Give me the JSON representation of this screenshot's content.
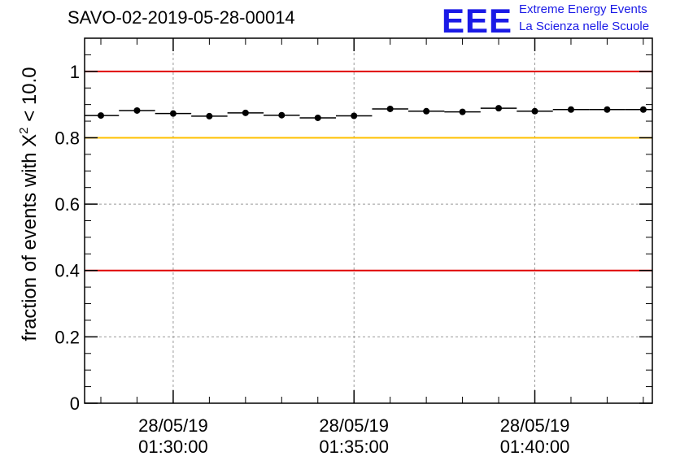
{
  "header": {
    "title": "SAVO-02-2019-05-28-00014",
    "logo_text": "EEE",
    "logo_line1": "Extreme Energy Events",
    "logo_line2": "La Scienza nelle Scuole"
  },
  "colors": {
    "axis": "#000000",
    "grid": "#9a9a9a",
    "red_line": "#e00000",
    "yellow_line": "#ffc000",
    "marker": "#000000",
    "logo": "#1a1ae6"
  },
  "chart_data": {
    "type": "scatter",
    "title": "SAVO-02-2019-05-28-00014",
    "ylabel_prefix": "fraction of events with ",
    "ylabel_symbol": "X",
    "ylabel_superscript": "2",
    "ylabel_suffix": " < 10.0",
    "xlabel": "",
    "ylim": [
      0,
      1.1
    ],
    "y_ticks": [
      0,
      0.2,
      0.4,
      0.6,
      0.8,
      1
    ],
    "y_tick_labels": [
      "0",
      "0.2",
      "0.4",
      "0.6",
      "0.8",
      "1"
    ],
    "x_unit": "minutes since 01:25:00",
    "xlim": [
      2.55,
      18.25
    ],
    "x_ticks": [
      5,
      10,
      15
    ],
    "x_tick_labels_date": [
      "28/05/19",
      "28/05/19",
      "28/05/19"
    ],
    "x_tick_labels_time": [
      "01:30:00",
      "01:35:00",
      "01:40:00"
    ],
    "grid": true,
    "reference_lines": [
      {
        "y": 1.0,
        "color": "red"
      },
      {
        "y": 0.8,
        "color": "yellow"
      },
      {
        "y": 0.4,
        "color": "red"
      }
    ],
    "series": [
      {
        "name": "fraction",
        "bin_width": 1.0,
        "x": [
          3.0,
          4.0,
          5.0,
          6.0,
          7.0,
          8.0,
          9.0,
          10.0,
          11.0,
          12.0,
          13.0,
          14.0,
          15.0,
          16.0,
          17.0,
          18.0
        ],
        "values": [
          0.867,
          0.882,
          0.873,
          0.865,
          0.875,
          0.868,
          0.86,
          0.866,
          0.887,
          0.88,
          0.878,
          0.889,
          0.88,
          0.885,
          0.885,
          0.885
        ]
      }
    ]
  }
}
